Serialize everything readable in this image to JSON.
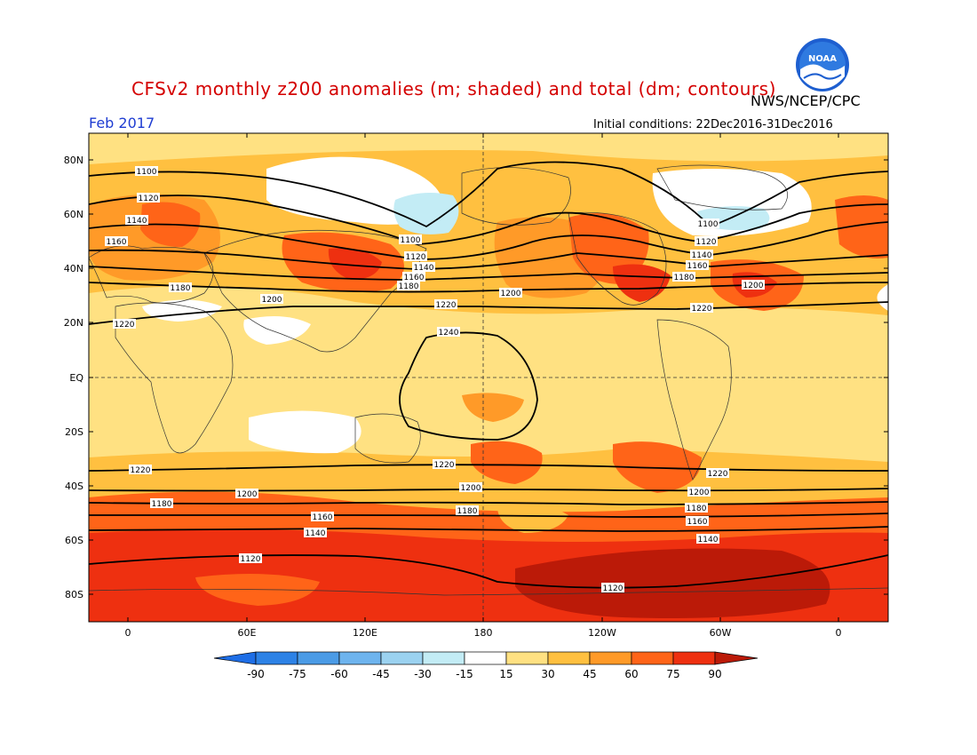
{
  "header": {
    "title": "CFSv2 monthly z200 anomalies (m; shaded) and total (dm; contours)",
    "agency": "NWS/NCEP/CPC",
    "month": "Feb 2017",
    "initial_conditions": "Initial conditions: 22Dec2016-31Dec2016",
    "logo_text": "NOAA"
  },
  "map": {
    "lat_labels": [
      "80N",
      "60N",
      "40N",
      "20N",
      "EQ",
      "20S",
      "40S",
      "60S",
      "80S"
    ],
    "lon_labels": [
      "0",
      "60E",
      "120E",
      "180",
      "120W",
      "60W",
      "0"
    ],
    "contour_labels": [
      "1100",
      "1120",
      "1140",
      "1160",
      "1180",
      "1200",
      "1220",
      "1240"
    ]
  },
  "colorbar": {
    "ticks": [
      "-90",
      "-75",
      "-60",
      "-45",
      "-30",
      "-15",
      "15",
      "30",
      "45",
      "60",
      "75",
      "90"
    ],
    "colors": [
      "#1e6ee6",
      "#2d82e6",
      "#4b9be6",
      "#6eb4ee",
      "#9bd2f0",
      "#c3ecf5",
      "#ffffff",
      "#ffe182",
      "#ffc040",
      "#ff9a28",
      "#ff6418",
      "#ee3010",
      "#bb1a08"
    ]
  }
}
